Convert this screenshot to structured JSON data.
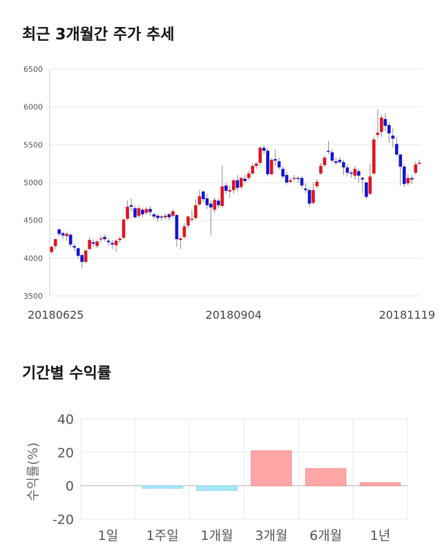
{
  "sections": {
    "price_title": "최근 3개월간 주가 추세",
    "return_title": "기간별 수익률"
  },
  "chart_data": [
    {
      "type": "candlestick",
      "title": "최근 3개월간 주가 추세",
      "ylim": [
        3500,
        6500
      ],
      "yticks": [
        3500,
        4000,
        4500,
        5000,
        5500,
        6000,
        6500
      ],
      "xtick_labels": [
        "20180625",
        "20180904",
        "20181119"
      ],
      "xtick_index": [
        0,
        48,
        96
      ],
      "grid": true,
      "colors": {
        "up": "#e0141e",
        "down": "#1414d2",
        "wick": "#888888"
      },
      "candles": [
        [
          4080,
          4150,
          4050,
          4160
        ],
        [
          4160,
          4250,
          4120,
          4260
        ],
        [
          4380,
          4320,
          4290,
          4400
        ],
        [
          4330,
          4300,
          4250,
          4350
        ],
        [
          4290,
          4320,
          4230,
          4350
        ],
        [
          4310,
          4180,
          4150,
          4330
        ],
        [
          4160,
          4140,
          4090,
          4190
        ],
        [
          4130,
          4030,
          4000,
          4140
        ],
        [
          4040,
          3950,
          3870,
          4060
        ],
        [
          3950,
          4100,
          3930,
          4120
        ],
        [
          4120,
          4240,
          4100,
          4280
        ],
        [
          4210,
          4190,
          4150,
          4250
        ],
        [
          4160,
          4220,
          4130,
          4240
        ],
        [
          4250,
          4260,
          4210,
          4300
        ],
        [
          4280,
          4250,
          4220,
          4310
        ],
        [
          4230,
          4210,
          4160,
          4260
        ],
        [
          4200,
          4180,
          4120,
          4240
        ],
        [
          4170,
          4230,
          4080,
          4250
        ],
        [
          4240,
          4260,
          4200,
          4290
        ],
        [
          4270,
          4510,
          4250,
          4530
        ],
        [
          4520,
          4680,
          4500,
          4760
        ],
        [
          4700,
          4680,
          4610,
          4790
        ],
        [
          4660,
          4540,
          4520,
          4690
        ],
        [
          4560,
          4660,
          4530,
          4700
        ],
        [
          4640,
          4580,
          4540,
          4670
        ],
        [
          4600,
          4650,
          4570,
          4680
        ],
        [
          4650,
          4610,
          4560,
          4690
        ],
        [
          4580,
          4550,
          4510,
          4600
        ],
        [
          4560,
          4530,
          4480,
          4580
        ],
        [
          4550,
          4540,
          4500,
          4570
        ],
        [
          4540,
          4560,
          4510,
          4590
        ],
        [
          4580,
          4540,
          4500,
          4600
        ],
        [
          4560,
          4620,
          4530,
          4640
        ],
        [
          4570,
          4250,
          4150,
          4580
        ],
        [
          4240,
          4260,
          4120,
          4290
        ],
        [
          4280,
          4420,
          4250,
          4460
        ],
        [
          4430,
          4550,
          4400,
          4560
        ],
        [
          4520,
          4520,
          4480,
          4640
        ],
        [
          4530,
          4700,
          4510,
          4780
        ],
        [
          4710,
          4820,
          4690,
          4900
        ],
        [
          4880,
          4780,
          4740,
          4900
        ],
        [
          4790,
          4700,
          4650,
          4850
        ],
        [
          4720,
          4670,
          4300,
          4760
        ],
        [
          4640,
          4770,
          4600,
          4800
        ],
        [
          4760,
          4700,
          4660,
          4790
        ],
        [
          4690,
          4950,
          4670,
          5230
        ],
        [
          4960,
          4890,
          4850,
          5000
        ],
        [
          4880,
          4900,
          4800,
          4960
        ],
        [
          4900,
          5030,
          4850,
          5050
        ],
        [
          5030,
          4930,
          4880,
          5100
        ],
        [
          4940,
          5060,
          4910,
          5080
        ],
        [
          5050,
          5020,
          4990,
          5100
        ],
        [
          5060,
          5120,
          5030,
          5160
        ],
        [
          5120,
          5220,
          5100,
          5250
        ],
        [
          5220,
          5250,
          5180,
          5270
        ],
        [
          5260,
          5460,
          5230,
          5480
        ],
        [
          5460,
          5420,
          5380,
          5490
        ],
        [
          5420,
          5110,
          5080,
          5450
        ],
        [
          5110,
          5300,
          5100,
          5320
        ],
        [
          5310,
          5290,
          5220,
          5440
        ],
        [
          5280,
          5200,
          5170,
          5330
        ],
        [
          5180,
          5080,
          5050,
          5220
        ],
        [
          5100,
          5000,
          4970,
          5150
        ],
        [
          5010,
          5030,
          4990,
          5060
        ],
        [
          5050,
          5060,
          5020,
          5100
        ],
        [
          5060,
          5050,
          5000,
          5080
        ],
        [
          5060,
          4960,
          4920,
          5090
        ],
        [
          4920,
          4900,
          4860,
          4990
        ],
        [
          4900,
          4720,
          4680,
          4930
        ],
        [
          4730,
          4900,
          4710,
          5000
        ],
        [
          4950,
          5010,
          4930,
          5050
        ],
        [
          5120,
          5220,
          5100,
          5260
        ],
        [
          5230,
          5330,
          5200,
          5360
        ],
        [
          5420,
          5410,
          5380,
          5550
        ],
        [
          5400,
          5290,
          5260,
          5440
        ],
        [
          5280,
          5260,
          5230,
          5330
        ],
        [
          5300,
          5270,
          5250,
          5340
        ],
        [
          5270,
          5200,
          5100,
          5300
        ],
        [
          5200,
          5130,
          5080,
          5250
        ],
        [
          5130,
          5120,
          5060,
          5160
        ],
        [
          5090,
          5180,
          5040,
          5220
        ],
        [
          5150,
          5090,
          5000,
          5180
        ],
        [
          5060,
          5040,
          4860,
          5080
        ],
        [
          5000,
          4810,
          4780,
          5010
        ],
        [
          4850,
          5080,
          4830,
          5250
        ],
        [
          5120,
          5570,
          5100,
          5600
        ],
        [
          5630,
          5660,
          5580,
          5970
        ],
        [
          5670,
          5860,
          5600,
          5900
        ],
        [
          5840,
          5750,
          5680,
          5920
        ],
        [
          5760,
          5650,
          5520,
          5800
        ],
        [
          5620,
          5580,
          5460,
          5720
        ],
        [
          5510,
          5370,
          5350,
          5600
        ],
        [
          5370,
          5210,
          4960,
          5380
        ],
        [
          5210,
          4980,
          4940,
          5240
        ],
        [
          4990,
          5060,
          4960,
          5110
        ],
        [
          5060,
          5040,
          4980,
          5100
        ],
        [
          5130,
          5240,
          5100,
          5280
        ],
        [
          5260,
          5260,
          5240,
          5300
        ]
      ]
    },
    {
      "type": "bar",
      "title": "기간별 수익률",
      "categories": [
        "1일",
        "1주일",
        "1개월",
        "3개월",
        "6개월",
        "1년"
      ],
      "values": [
        0.0,
        -1.5,
        -2.8,
        21.0,
        10.3,
        1.9
      ],
      "ylabel": "수익률(%)",
      "ylim": [
        -20,
        40
      ],
      "yticks": [
        -20,
        0,
        20,
        40
      ],
      "colors": {
        "positive": "#ffa6a6",
        "positive_edge": "#f08c8c",
        "negative": "#a9e8f5",
        "negative_edge": "#86d7ec"
      }
    }
  ]
}
